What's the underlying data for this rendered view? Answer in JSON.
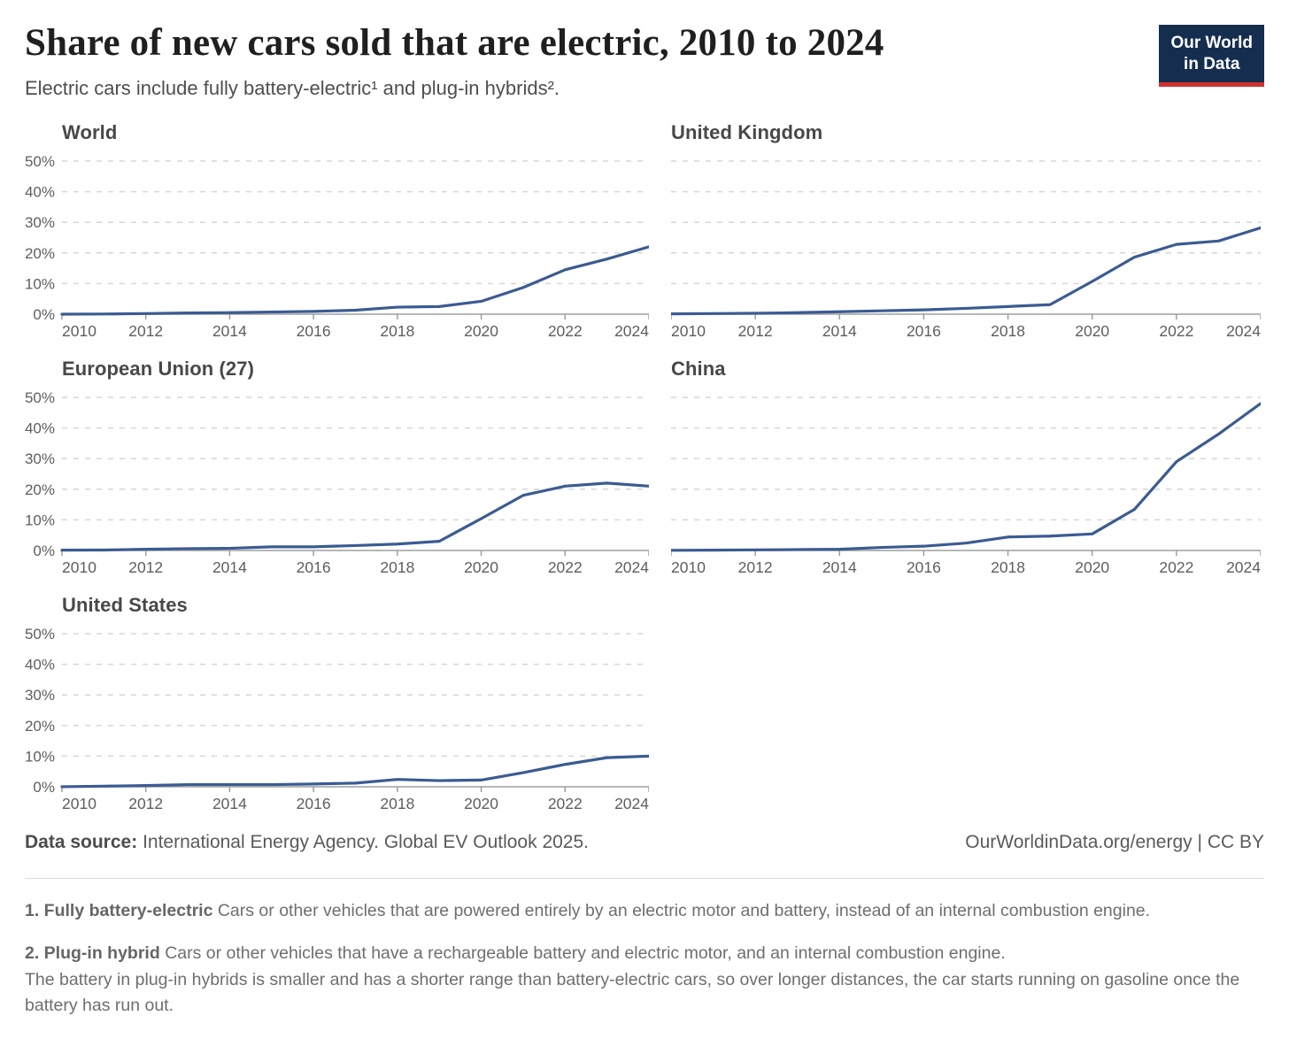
{
  "header": {
    "title": "Share of new cars sold that are electric, 2010 to 2024",
    "subtitle": "Electric cars include fully battery-electric¹ and plug-in hybrids².",
    "logo_line1": "Our World",
    "logo_line2": "in Data"
  },
  "colors": {
    "line": "#3b5b92",
    "grid": "#d6d6d6",
    "axis": "#9e9e9e",
    "axis_label": "#5e5e5e",
    "logo_bg": "#152e4f",
    "logo_stripe": "#cd322e"
  },
  "chart_data": [
    {
      "type": "line",
      "title": "World",
      "x": [
        2010,
        2011,
        2012,
        2013,
        2014,
        2015,
        2016,
        2017,
        2018,
        2019,
        2020,
        2021,
        2022,
        2023,
        2024
      ],
      "values": [
        0.01,
        0.05,
        0.2,
        0.4,
        0.5,
        0.7,
        0.9,
        1.3,
        2.3,
        2.5,
        4.2,
        8.7,
        14.5,
        18,
        22
      ],
      "ylim": [
        0,
        50
      ],
      "yticks": [
        0,
        10,
        20,
        30,
        40,
        50
      ],
      "ytick_labels": [
        "0%",
        "10%",
        "20%",
        "30%",
        "40%",
        "50%"
      ],
      "xticks": [
        2010,
        2012,
        2014,
        2016,
        2018,
        2020,
        2022,
        2024
      ],
      "xtick_labels": [
        "2010",
        "2012",
        "2014",
        "2016",
        "2018",
        "2020",
        "2022",
        "2024"
      ],
      "y_labels_visible": true,
      "grid": "dashed-horizontal",
      "legend": "none"
    },
    {
      "type": "line",
      "title": "United Kingdom",
      "x": [
        2010,
        2011,
        2012,
        2013,
        2014,
        2015,
        2016,
        2017,
        2018,
        2019,
        2020,
        2021,
        2022,
        2023,
        2024
      ],
      "values": [
        0.1,
        0.2,
        0.3,
        0.5,
        0.8,
        1.1,
        1.4,
        1.9,
        2.5,
        3.1,
        10.7,
        18.6,
        22.8,
        23.9,
        28.2
      ],
      "ylim": [
        0,
        50
      ],
      "yticks": [
        0,
        10,
        20,
        30,
        40,
        50
      ],
      "xticks": [
        2010,
        2012,
        2014,
        2016,
        2018,
        2020,
        2022,
        2024
      ],
      "xtick_labels": [
        "2010",
        "2012",
        "2014",
        "2016",
        "2018",
        "2020",
        "2022",
        "2024"
      ],
      "y_labels_visible": false,
      "grid": "dashed-horizontal",
      "legend": "none"
    },
    {
      "type": "line",
      "title": "European Union (27)",
      "x": [
        2010,
        2011,
        2012,
        2013,
        2014,
        2015,
        2016,
        2017,
        2018,
        2019,
        2020,
        2021,
        2022,
        2023,
        2024
      ],
      "values": [
        0.1,
        0.15,
        0.4,
        0.6,
        0.7,
        1.2,
        1.2,
        1.6,
        2.1,
        3.0,
        10.4,
        18.0,
        21.0,
        22.0,
        21.0
      ],
      "ylim": [
        0,
        50
      ],
      "yticks": [
        0,
        10,
        20,
        30,
        40,
        50
      ],
      "ytick_labels": [
        "0%",
        "10%",
        "20%",
        "30%",
        "40%",
        "50%"
      ],
      "xticks": [
        2010,
        2012,
        2014,
        2016,
        2018,
        2020,
        2022,
        2024
      ],
      "xtick_labels": [
        "2010",
        "2012",
        "2014",
        "2016",
        "2018",
        "2020",
        "2022",
        "2024"
      ],
      "y_labels_visible": true,
      "grid": "dashed-horizontal",
      "legend": "none"
    },
    {
      "type": "line",
      "title": "China",
      "x": [
        2010,
        2011,
        2012,
        2013,
        2014,
        2015,
        2016,
        2017,
        2018,
        2019,
        2020,
        2021,
        2022,
        2023,
        2024
      ],
      "values": [
        0.05,
        0.1,
        0.2,
        0.3,
        0.4,
        1.0,
        1.4,
        2.4,
        4.4,
        4.7,
        5.4,
        13.4,
        29.0,
        38.0,
        48.0
      ],
      "ylim": [
        0,
        50
      ],
      "yticks": [
        0,
        10,
        20,
        30,
        40,
        50
      ],
      "xticks": [
        2010,
        2012,
        2014,
        2016,
        2018,
        2020,
        2022,
        2024
      ],
      "xtick_labels": [
        "2010",
        "2012",
        "2014",
        "2016",
        "2018",
        "2020",
        "2022",
        "2024"
      ],
      "y_labels_visible": false,
      "grid": "dashed-horizontal",
      "legend": "none"
    },
    {
      "type": "line",
      "title": "United States",
      "x": [
        2010,
        2011,
        2012,
        2013,
        2014,
        2015,
        2016,
        2017,
        2018,
        2019,
        2020,
        2021,
        2022,
        2023,
        2024
      ],
      "values": [
        0.02,
        0.2,
        0.4,
        0.7,
        0.7,
        0.7,
        0.9,
        1.2,
        2.4,
        2.0,
        2.2,
        4.6,
        7.3,
        9.5,
        10.0
      ],
      "ylim": [
        0,
        50
      ],
      "yticks": [
        0,
        10,
        20,
        30,
        40,
        50
      ],
      "ytick_labels": [
        "0%",
        "10%",
        "20%",
        "30%",
        "40%",
        "50%"
      ],
      "xticks": [
        2010,
        2012,
        2014,
        2016,
        2018,
        2020,
        2022,
        2024
      ],
      "xtick_labels": [
        "2010",
        "2012",
        "2014",
        "2016",
        "2018",
        "2020",
        "2022",
        "2024"
      ],
      "y_labels_visible": true,
      "grid": "dashed-horizontal",
      "legend": "none"
    }
  ],
  "footer": {
    "source_label": "Data source:",
    "source_text": "International Energy Agency. Global EV Outlook 2025.",
    "link": "OurWorldinData.org/energy",
    "separator": "|",
    "license": "CC BY"
  },
  "notes": [
    {
      "label": "1. Fully battery-electric",
      "text": "Cars or other vehicles that are powered entirely by an electric motor and battery, instead of an internal combustion engine.",
      "text2": ""
    },
    {
      "label": "2. Plug-in hybrid",
      "text": "Cars or other vehicles that have a rechargeable battery and electric motor, and an internal combustion engine.",
      "text2": "The battery in plug-in hybrids is smaller and has a shorter range than battery-electric cars, so over longer distances, the car starts running on gasoline once the battery has run out."
    }
  ]
}
